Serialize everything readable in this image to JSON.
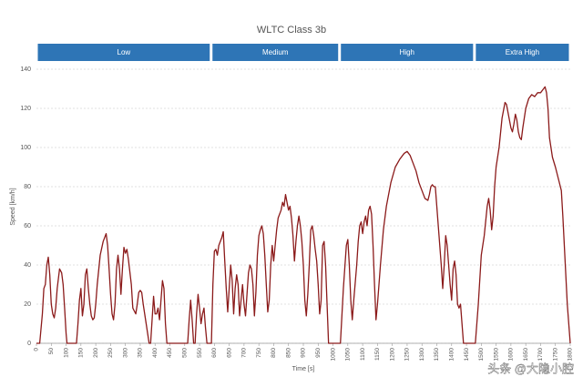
{
  "chart_data": {
    "type": "line",
    "title": "WLTC Class 3b",
    "x_label": "Time [s]",
    "y_label": "Speed [km/h]",
    "phases": [
      {
        "name": "Low",
        "start": 0,
        "end": 589
      },
      {
        "name": "Medium",
        "start": 589,
        "end": 1022
      },
      {
        "name": "High",
        "start": 1022,
        "end": 1477
      },
      {
        "name": "Extra High",
        "start": 1477,
        "end": 1800
      }
    ],
    "phase_color": "#2e75b6",
    "xlim": [
      0,
      1800
    ],
    "ylim": [
      0,
      140
    ],
    "xticks": [
      0,
      50,
      100,
      150,
      200,
      250,
      300,
      350,
      400,
      450,
      500,
      550,
      600,
      650,
      700,
      750,
      800,
      850,
      900,
      950,
      1000,
      1050,
      1100,
      1150,
      1200,
      1250,
      1300,
      1350,
      1400,
      1450,
      1500,
      1550,
      1600,
      1650,
      1700,
      1750,
      1800
    ],
    "yticks": [
      0,
      20,
      40,
      60,
      80,
      100,
      120,
      140
    ],
    "grid": true,
    "series": [
      {
        "name": "Speed",
        "color": "#8b1a1a",
        "x": [
          0,
          11,
          20,
          25,
          30,
          35,
          40,
          45,
          50,
          55,
          60,
          65,
          70,
          78,
          85,
          90,
          95,
          100,
          103,
          135,
          140,
          145,
          150,
          155,
          160,
          165,
          170,
          175,
          180,
          185,
          190,
          195,
          200,
          205,
          215,
          225,
          235,
          240,
          245,
          250,
          255,
          260,
          265,
          270,
          275,
          280,
          285,
          290,
          295,
          300,
          305,
          310,
          320,
          325,
          335,
          340,
          345,
          350,
          355,
          360,
          365,
          370,
          375,
          380,
          385,
          390,
          395,
          400,
          405,
          410,
          415,
          420,
          425,
          430,
          435,
          440,
          510,
          515,
          520,
          525,
          530,
          535,
          540,
          545,
          550,
          555,
          560,
          565,
          570,
          575,
          585,
          590,
          595,
          600,
          605,
          610,
          615,
          625,
          630,
          635,
          640,
          645,
          650,
          655,
          660,
          665,
          670,
          675,
          680,
          685,
          690,
          695,
          700,
          705,
          710,
          715,
          720,
          725,
          730,
          735,
          740,
          745,
          750,
          755,
          760,
          765,
          770,
          775,
          780,
          785,
          790,
          795,
          800,
          805,
          810,
          815,
          825,
          830,
          835,
          840,
          845,
          850,
          855,
          860,
          865,
          870,
          875,
          880,
          885,
          890,
          895,
          900,
          905,
          910,
          915,
          920,
          925,
          930,
          935,
          940,
          945,
          950,
          955,
          960,
          965,
          970,
          975,
          980,
          985,
          1022,
          1025,
          1035,
          1045,
          1050,
          1055,
          1060,
          1065,
          1070,
          1080,
          1085,
          1090,
          1095,
          1100,
          1105,
          1110,
          1115,
          1120,
          1125,
          1130,
          1135,
          1140,
          1145,
          1150,
          1160,
          1170,
          1180,
          1195,
          1210,
          1225,
          1240,
          1250,
          1260,
          1270,
          1280,
          1290,
          1300,
          1310,
          1320,
          1325,
          1330,
          1335,
          1340,
          1345,
          1350,
          1355,
          1360,
          1365,
          1370,
          1375,
          1380,
          1385,
          1390,
          1395,
          1400,
          1405,
          1410,
          1415,
          1420,
          1425,
          1430,
          1435,
          1440,
          1475,
          1480,
          1490,
          1500,
          1510,
          1520,
          1525,
          1530,
          1535,
          1540,
          1545,
          1550,
          1560,
          1570,
          1580,
          1585,
          1590,
          1600,
          1605,
          1610,
          1615,
          1620,
          1625,
          1630,
          1635,
          1640,
          1650,
          1660,
          1670,
          1680,
          1690,
          1700,
          1710,
          1715,
          1720,
          1725,
          1730,
          1740,
          1750,
          1760,
          1770,
          1775,
          1780,
          1790,
          1800
        ],
        "values": [
          0,
          0,
          15,
          28,
          30,
          40,
          44,
          35,
          20,
          15,
          13,
          18,
          28,
          38,
          36,
          30,
          18,
          5,
          0,
          0,
          10,
          22,
          28,
          14,
          20,
          35,
          38,
          28,
          20,
          14,
          12,
          13,
          20,
          30,
          45,
          52,
          56,
          50,
          38,
          25,
          15,
          12,
          20,
          38,
          45,
          38,
          25,
          38,
          49,
          46,
          48,
          43,
          30,
          18,
          15,
          20,
          26,
          27,
          26,
          20,
          15,
          10,
          5,
          0,
          0,
          12,
          24,
          15,
          15,
          18,
          12,
          22,
          32,
          28,
          10,
          0,
          0,
          12,
          22,
          12,
          0,
          0,
          15,
          25,
          18,
          10,
          15,
          18,
          8,
          0,
          0,
          0,
          30,
          47,
          48,
          45,
          50,
          54,
          57,
          42,
          28,
          16,
          28,
          40,
          32,
          15,
          28,
          35,
          30,
          14,
          22,
          30,
          20,
          14,
          25,
          36,
          40,
          38,
          30,
          14,
          26,
          45,
          55,
          58,
          60,
          56,
          45,
          30,
          16,
          22,
          40,
          50,
          42,
          50,
          58,
          64,
          68,
          72,
          70,
          76,
          72,
          68,
          70,
          64,
          55,
          42,
          52,
          60,
          65,
          60,
          52,
          40,
          22,
          14,
          25,
          40,
          58,
          60,
          55,
          48,
          42,
          30,
          15,
          22,
          50,
          52,
          40,
          20,
          0,
          0,
          0,
          28,
          50,
          53,
          40,
          22,
          12,
          22,
          40,
          52,
          60,
          62,
          56,
          62,
          65,
          60,
          68,
          70,
          66,
          50,
          30,
          12,
          20,
          40,
          58,
          70,
          82,
          90,
          94,
          97,
          98,
          96,
          92,
          88,
          82,
          78,
          74,
          73,
          76,
          80,
          81,
          80,
          80,
          70,
          60,
          50,
          40,
          28,
          40,
          55,
          50,
          40,
          30,
          22,
          38,
          42,
          35,
          20,
          18,
          20,
          10,
          0,
          0,
          0,
          20,
          45,
          55,
          70,
          74,
          68,
          58,
          65,
          80,
          90,
          100,
          115,
          123,
          122,
          118,
          110,
          108,
          112,
          117,
          114,
          108,
          105,
          104,
          110,
          120,
          125,
          127,
          126,
          128,
          128,
          130,
          131,
          128,
          120,
          105,
          95,
          90,
          84,
          78,
          65,
          50,
          20,
          0
        ]
      }
    ],
    "watermark": "头条 @大隐小腔"
  }
}
